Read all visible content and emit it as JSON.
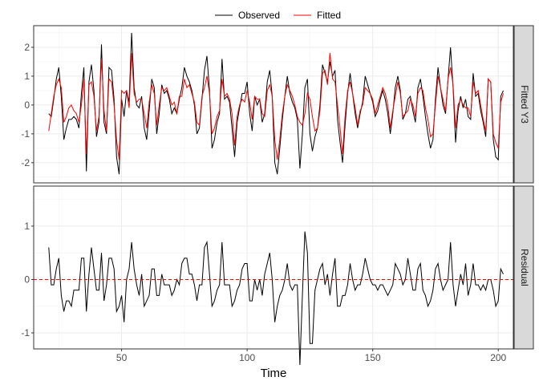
{
  "chart_data": {
    "type": "line",
    "xlabel": "Time",
    "x_start": 21,
    "x_ticks": [
      50,
      100,
      150,
      200
    ],
    "xlim": [
      15,
      206
    ],
    "legend": {
      "position": "top",
      "entries": [
        "Observed",
        "Fitted"
      ]
    },
    "colors": {
      "Observed": "#000000",
      "Fitted": "#ff0000",
      "zero_line": "#ff0000"
    },
    "grid": true,
    "panels": [
      {
        "strip": "Fitted Y3",
        "y_ticks": [
          "-2",
          "-1",
          "0",
          "1",
          "2"
        ],
        "ylim": [
          -2.7,
          2.75
        ]
      },
      {
        "strip": "Residual",
        "y_ticks": [
          "-1",
          "0",
          "1"
        ],
        "ylim": [
          -1.3,
          1.75
        ],
        "reference_line": 0
      }
    ],
    "series": [
      {
        "name": "Observed",
        "values": [
          -0.3,
          -0.4,
          0.2,
          0.9,
          1.3,
          0.3,
          -1.2,
          -0.8,
          -0.5,
          -0.5,
          -0.4,
          -0.5,
          -0.8,
          0.4,
          1.3,
          -2.3,
          0.8,
          1.4,
          0.5,
          -1.1,
          -0.6,
          2.1,
          -0.6,
          -1.0,
          1.3,
          1.2,
          0.2,
          -1.8,
          -2.4,
          0.2,
          -0.4,
          0.5,
          0.1,
          2.5,
          0.6,
          0.0,
          -0.1,
          0.3,
          -0.8,
          -1.2,
          -0.2,
          0.9,
          0.6,
          -1.0,
          -0.3,
          0.7,
          0.4,
          0.5,
          0.2,
          -0.3,
          -0.1,
          -0.3,
          0.2,
          0.6,
          1.3,
          1.0,
          0.8,
          0.5,
          0.0,
          -1.0,
          -0.8,
          0.2,
          1.2,
          1.7,
          0.5,
          -1.5,
          -1.2,
          -0.6,
          -0.3,
          1.6,
          0.2,
          0.3,
          0.1,
          -0.8,
          -1.8,
          -0.6,
          -0.1,
          0.4,
          0.4,
          0.8,
          -0.3,
          -0.9,
          0.3,
          0.0,
          0.2,
          -0.6,
          -0.3,
          0.8,
          1.2,
          0.3,
          -2.0,
          -2.4,
          -1.5,
          -0.5,
          0.3,
          1.0,
          0.4,
          0.1,
          -0.1,
          -0.5,
          -2.2,
          -1.0,
          0.6,
          0.9,
          -1.0,
          -1.6,
          -1.1,
          -0.8,
          0.0,
          1.4,
          1.1,
          0.8,
          1.5,
          1.0,
          1.2,
          -0.5,
          -1.3,
          -2.0,
          -0.7,
          0.4,
          1.1,
          0.4,
          -0.3,
          -0.8,
          -0.3,
          0.1,
          1.0,
          0.7,
          0.4,
          0.1,
          -0.4,
          -0.2,
          0.2,
          0.5,
          0.2,
          -0.3,
          -1.0,
          -0.3,
          0.6,
          1.0,
          0.5,
          -0.5,
          -0.3,
          0.2,
          0.3,
          -0.2,
          -0.6,
          0.6,
          0.9,
          0.3,
          -0.4,
          -1.0,
          -1.5,
          -1.2,
          0.2,
          1.3,
          0.6,
          0.0,
          -0.3,
          0.9,
          2.0,
          0.6,
          -1.3,
          -0.2,
          0.3,
          -0.1,
          0.2,
          -0.4,
          -0.5,
          1.1,
          0.3,
          0.4,
          -0.2,
          -0.6,
          -1.1,
          0.9,
          0.8,
          -1.2,
          -1.8,
          -1.9,
          0.3,
          0.5
        ]
      },
      {
        "name": "Fitted",
        "values": [
          -0.9,
          -0.3,
          0.3,
          0.7,
          0.9,
          0.6,
          -0.6,
          -0.4,
          -0.1,
          0.0,
          -0.2,
          -0.3,
          -0.6,
          0.0,
          0.9,
          -1.7,
          0.7,
          0.8,
          0.3,
          -0.9,
          -0.4,
          1.6,
          -0.2,
          -0.9,
          0.9,
          0.8,
          0.0,
          -1.2,
          -1.9,
          0.5,
          0.4,
          0.5,
          -0.1,
          1.8,
          0.4,
          0.1,
          0.2,
          0.2,
          -0.3,
          -0.8,
          0.1,
          0.7,
          0.4,
          -0.7,
          0.0,
          0.6,
          0.5,
          0.6,
          0.3,
          0.0,
          0.1,
          -0.3,
          0.3,
          0.3,
          0.9,
          0.6,
          0.7,
          0.4,
          0.1,
          -0.6,
          -0.7,
          0.3,
          0.6,
          1.0,
          0.4,
          -1.0,
          -0.8,
          -0.4,
          -0.2,
          0.9,
          0.3,
          0.4,
          0.2,
          -0.3,
          -1.4,
          -0.4,
          0.0,
          0.2,
          0.1,
          0.5,
          0.1,
          -0.5,
          0.3,
          0.2,
          0.2,
          -0.3,
          -0.4,
          0.5,
          0.7,
          0.3,
          -1.2,
          -1.9,
          -1.2,
          -0.3,
          0.3,
          0.7,
          0.5,
          0.3,
          0.0,
          -0.4,
          -0.6,
          -0.7,
          -0.3,
          0.4,
          0.2,
          -0.4,
          -0.9,
          -0.8,
          -0.2,
          1.1,
          1.2,
          0.7,
          1.8,
          0.9,
          0.8,
          0.0,
          -0.8,
          -1.7,
          -0.4,
          0.5,
          0.8,
          0.4,
          -0.1,
          -0.7,
          -0.2,
          0.0,
          0.6,
          0.5,
          0.4,
          0.2,
          -0.3,
          0.0,
          0.3,
          0.6,
          0.4,
          0.0,
          -0.8,
          -0.2,
          0.3,
          0.8,
          0.4,
          -0.4,
          -0.3,
          -0.2,
          0.2,
          0.0,
          -0.4,
          0.4,
          0.6,
          0.5,
          -0.1,
          -0.5,
          -1.1,
          -1.0,
          0.0,
          1.0,
          0.6,
          0.2,
          -0.2,
          0.9,
          1.3,
          0.7,
          -0.8,
          0.0,
          0.2,
          0.0,
          -0.1,
          -0.1,
          -0.4,
          0.8,
          0.4,
          0.5,
          0.0,
          -0.5,
          -0.9,
          0.9,
          0.8,
          -1.0,
          -1.3,
          -1.5,
          0.1,
          0.4
        ]
      }
    ]
  }
}
